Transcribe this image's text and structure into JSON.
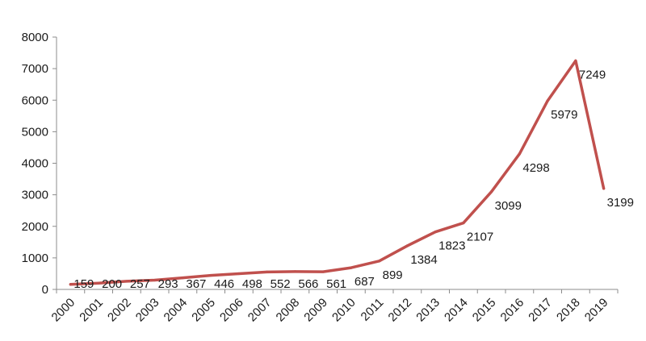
{
  "chart_data": {
    "type": "line",
    "title": "",
    "xlabel": "",
    "ylabel": "",
    "ylim": [
      0,
      8000
    ],
    "yticks": [
      "0",
      "1000",
      "2000",
      "3000",
      "4000",
      "5000",
      "6000",
      "7000",
      "8000"
    ],
    "grid": false,
    "legend": "none",
    "categories": [
      "2000",
      "2001",
      "2002",
      "2003",
      "2004",
      "2005",
      "2006",
      "2007",
      "2008",
      "2009",
      "2010",
      "2011",
      "2012",
      "2013",
      "2014",
      "2015",
      "2016",
      "2017",
      "2018",
      "2019"
    ],
    "series": [
      {
        "color": "#c0504d",
        "values": [
          159,
          200,
          257,
          293,
          367,
          446,
          498,
          552,
          566,
          561,
          687,
          899,
          1384,
          1823,
          2107,
          3099,
          4298,
          5979,
          7249,
          3199
        ]
      }
    ],
    "data_labels": [
      "159",
      "200",
      "257",
      "293",
      "367",
      "446",
      "498",
      "552",
      "566",
      "561",
      "687",
      "899",
      "1384",
      "1823",
      "2107",
      "3099",
      "4298",
      "5979",
      "7249",
      "3199"
    ]
  }
}
